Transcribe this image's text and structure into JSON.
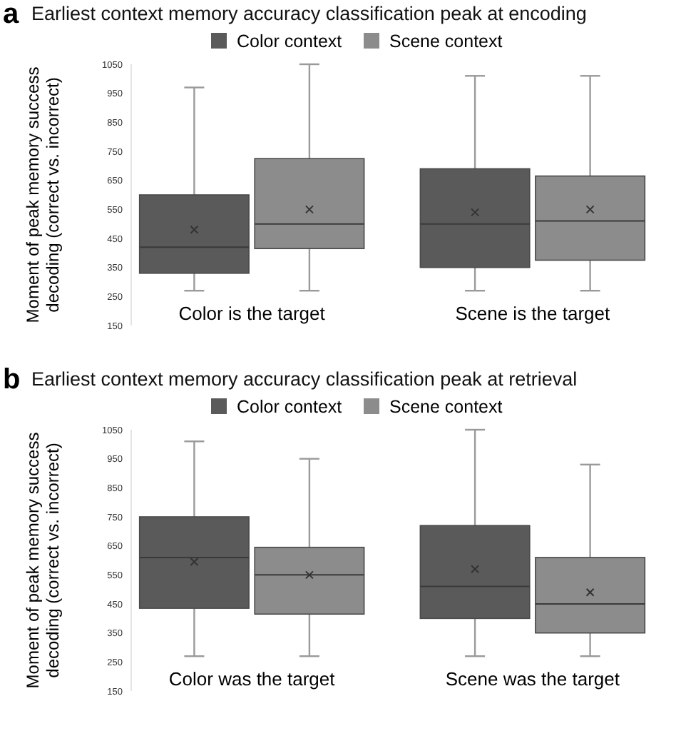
{
  "chart_data": [
    {
      "type": "box",
      "title": "Earliest context memory accuracy classification peak at encoding",
      "annotations": [
        "a"
      ],
      "ylabel": "Moment of peak memory success decoding (correct vs. incorrect)",
      "categories": [
        "Color is the target",
        "Scene is the target"
      ],
      "ylim": [
        150,
        1050
      ],
      "yticks": [
        150,
        250,
        350,
        450,
        550,
        650,
        750,
        850,
        950,
        1050
      ],
      "legend": "top",
      "grid": false,
      "series": [
        {
          "name": "Color context",
          "color": "#5a5a5a",
          "boxes": [
            {
              "low": 270,
              "q1": 330,
              "median": 420,
              "q3": 600,
              "high": 970,
              "mean": 480
            },
            {
              "low": 270,
              "q1": 350,
              "median": 500,
              "q3": 690,
              "high": 1010,
              "mean": 540
            }
          ]
        },
        {
          "name": "Scene context",
          "color": "#8c8c8c",
          "boxes": [
            {
              "low": 270,
              "q1": 415,
              "median": 500,
              "q3": 725,
              "high": 1050,
              "mean": 550
            },
            {
              "low": 270,
              "q1": 375,
              "median": 510,
              "q3": 665,
              "high": 1010,
              "mean": 550
            }
          ]
        }
      ]
    },
    {
      "type": "box",
      "title": "Earliest context memory accuracy classification peak at retrieval",
      "annotations": [
        "b"
      ],
      "ylabel": "Moment of peak memory success decoding (correct vs. incorrect)",
      "categories": [
        "Color was the target",
        "Scene was the target"
      ],
      "ylim": [
        150,
        1050
      ],
      "yticks": [
        150,
        250,
        350,
        450,
        550,
        650,
        750,
        850,
        950,
        1050
      ],
      "legend": "top",
      "grid": false,
      "series": [
        {
          "name": "Color context",
          "color": "#5a5a5a",
          "boxes": [
            {
              "low": 270,
              "q1": 435,
              "median": 610,
              "q3": 750,
              "high": 1010,
              "mean": 595
            },
            {
              "low": 270,
              "q1": 400,
              "median": 510,
              "q3": 720,
              "high": 1050,
              "mean": 570
            }
          ]
        },
        {
          "name": "Scene context",
          "color": "#8c8c8c",
          "boxes": [
            {
              "low": 270,
              "q1": 415,
              "median": 550,
              "q3": 645,
              "high": 950,
              "mean": 550
            },
            {
              "low": 270,
              "q1": 350,
              "median": 450,
              "q3": 610,
              "high": 930,
              "mean": 490
            }
          ]
        }
      ]
    }
  ]
}
